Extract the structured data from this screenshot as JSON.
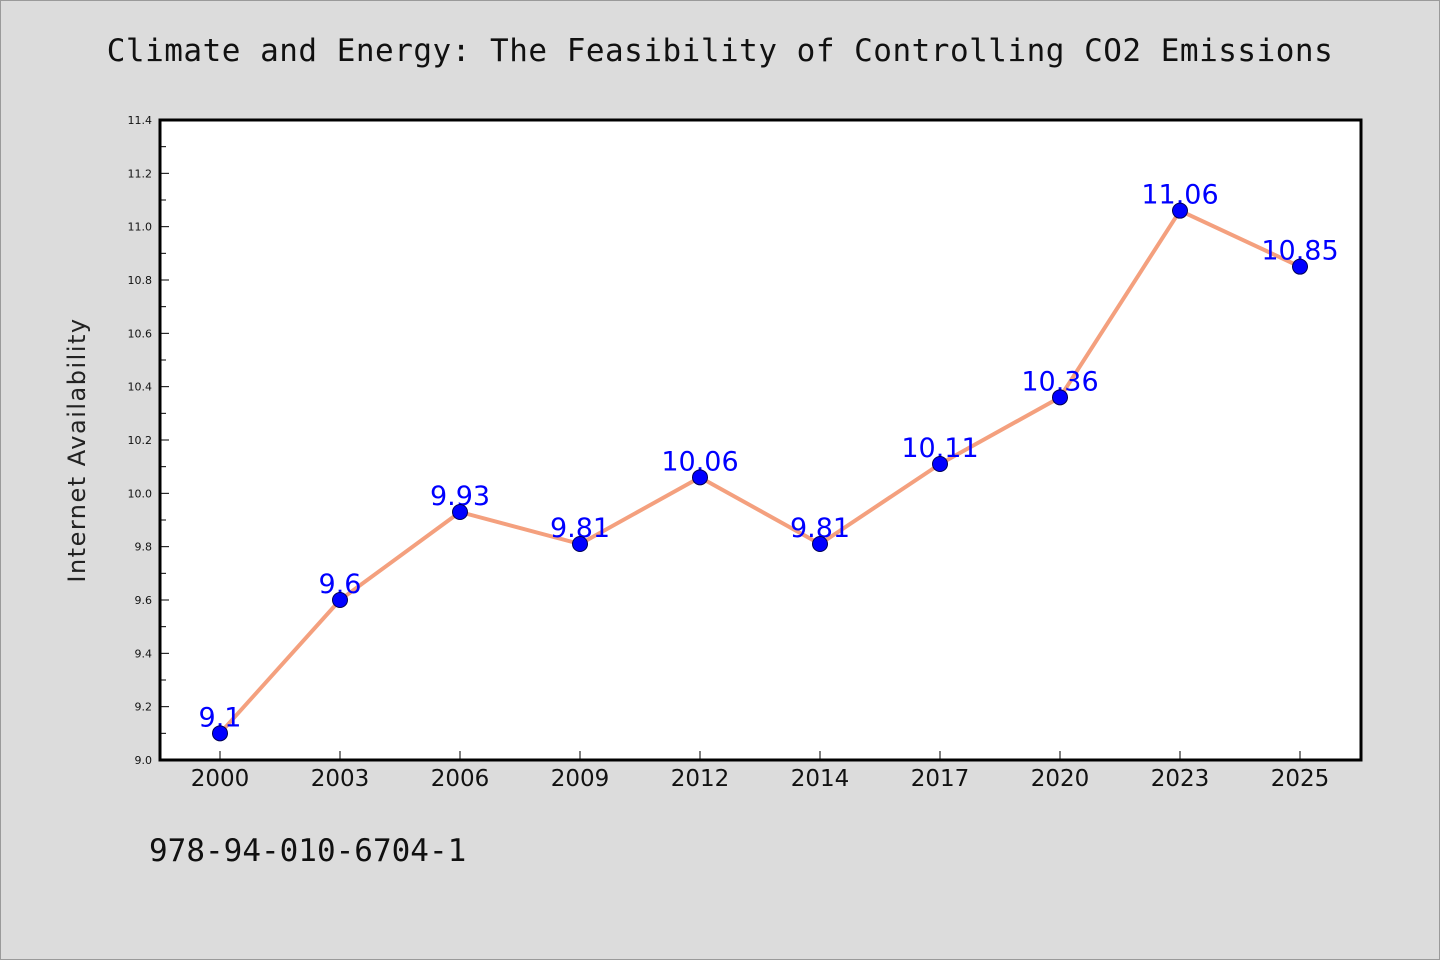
{
  "chart_data": {
    "type": "line",
    "title": "Climate and Energy: The Feasibility of Controlling CO2 Emissions",
    "xlabel": "",
    "ylabel": "Internet Availability",
    "categories": [
      "2000",
      "2003",
      "2006",
      "2009",
      "2012",
      "2014",
      "2017",
      "2020",
      "2023",
      "2025"
    ],
    "series": [
      {
        "values": [
          9.1,
          9.6,
          9.93,
          9.81,
          10.06,
          9.81,
          10.11,
          10.36,
          11.06,
          10.85
        ],
        "labels": [
          "9.1",
          "9.6",
          "9.93",
          "9.81",
          "10.06",
          "9.81",
          "10.11",
          "10.36",
          "11.06",
          "10.85"
        ],
        "line_color": "#f4a07e",
        "marker_color": "#0000ff"
      }
    ],
    "ylim": [
      9.0,
      11.4
    ],
    "yticks": [
      "9.0",
      "9.2",
      "9.4",
      "9.6",
      "9.8",
      "10.0",
      "10.2",
      "10.4",
      "10.6",
      "10.8",
      "11.0",
      "11.2",
      "11.4"
    ],
    "grid": false,
    "legend": "none"
  },
  "footnote": "978-94-010-6704-1",
  "colors": {
    "background": "#dcdcdc",
    "plot_background": "#ffffff",
    "data_label": "#0000ff"
  }
}
